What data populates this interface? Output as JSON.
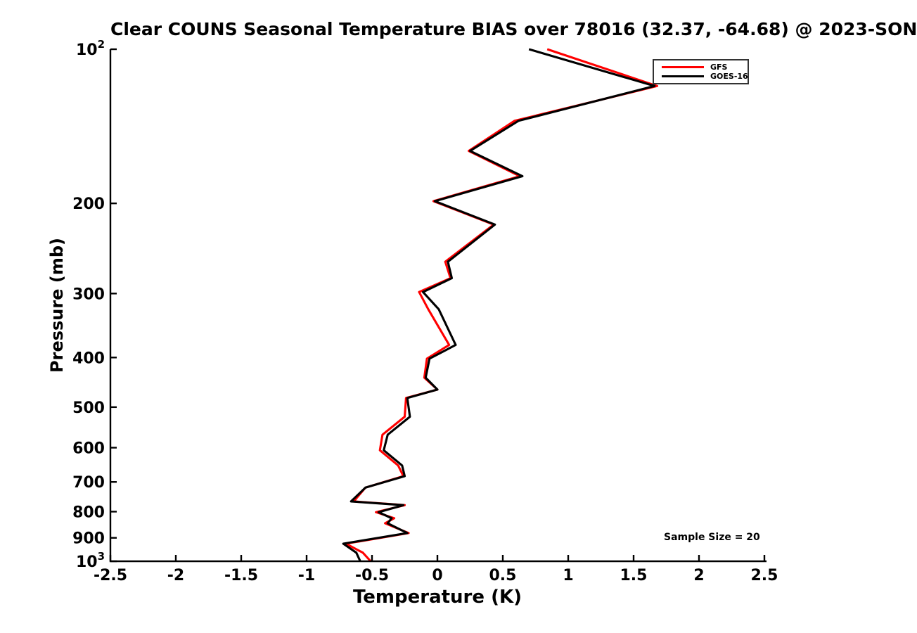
{
  "chart_data": {
    "type": "line",
    "title": "Clear COUNS Seasonal Temperature BIAS over 78016 (32.37, -64.68) @ 2023-SON",
    "xlabel": "Temperature (K)",
    "ylabel": "Pressure (mb)",
    "xlim": [
      -2.5,
      2.5
    ],
    "ylim_pressure_mb": [
      100,
      1000
    ],
    "y_scale": "log10",
    "y_direction": "pressure-increasing-downward",
    "grid": false,
    "legend_position": "upper-right",
    "x_tick_values": [
      -2.5,
      -2,
      -1.5,
      -1,
      -0.5,
      0,
      0.5,
      1,
      1.5,
      2,
      2.5
    ],
    "x_tick_labels": [
      "-2.5",
      "-2",
      "-1.5",
      "-1",
      "-0.5",
      "0",
      "0.5",
      "1",
      "1.5",
      "2",
      "2.5"
    ],
    "y_tick_values": [
      100,
      200,
      300,
      400,
      500,
      600,
      700,
      800,
      900,
      1000
    ],
    "y_tick_labels": [
      "10^2",
      "200",
      "300",
      "400",
      "500",
      "600",
      "700",
      "800",
      "900",
      "10^3"
    ],
    "pressure_levels_mb": [
      100,
      118,
      138,
      158,
      177,
      198,
      220,
      260,
      280,
      298,
      322,
      378,
      402,
      438,
      462,
      480,
      522,
      566,
      607,
      650,
      682,
      718,
      764,
      777,
      802,
      824,
      843,
      881,
      924,
      962,
      1000
    ],
    "series": [
      {
        "name": "GFS",
        "color": "#ff0000",
        "bias_k": [
          0.84,
          1.68,
          0.59,
          0.24,
          0.63,
          -0.03,
          0.43,
          0.06,
          0.1,
          -0.14,
          -0.07,
          0.09,
          -0.08,
          -0.1,
          0.0,
          -0.24,
          -0.25,
          -0.42,
          -0.44,
          -0.3,
          -0.26,
          -0.55,
          -0.64,
          -0.25,
          -0.47,
          -0.33,
          -0.4,
          -0.22,
          -0.7,
          -0.57,
          -0.51
        ]
      },
      {
        "name": "GOES-16",
        "color": "#000000",
        "bias_k": [
          0.7,
          1.66,
          0.62,
          0.25,
          0.65,
          -0.02,
          0.44,
          0.08,
          0.11,
          -0.11,
          0.01,
          0.14,
          -0.06,
          -0.09,
          0.0,
          -0.23,
          -0.21,
          -0.38,
          -0.41,
          -0.27,
          -0.25,
          -0.55,
          -0.66,
          -0.26,
          -0.45,
          -0.35,
          -0.38,
          -0.23,
          -0.72,
          -0.62,
          -0.59
        ]
      }
    ],
    "annotation": "Sample Size = 20",
    "axis_color": "#000000"
  }
}
